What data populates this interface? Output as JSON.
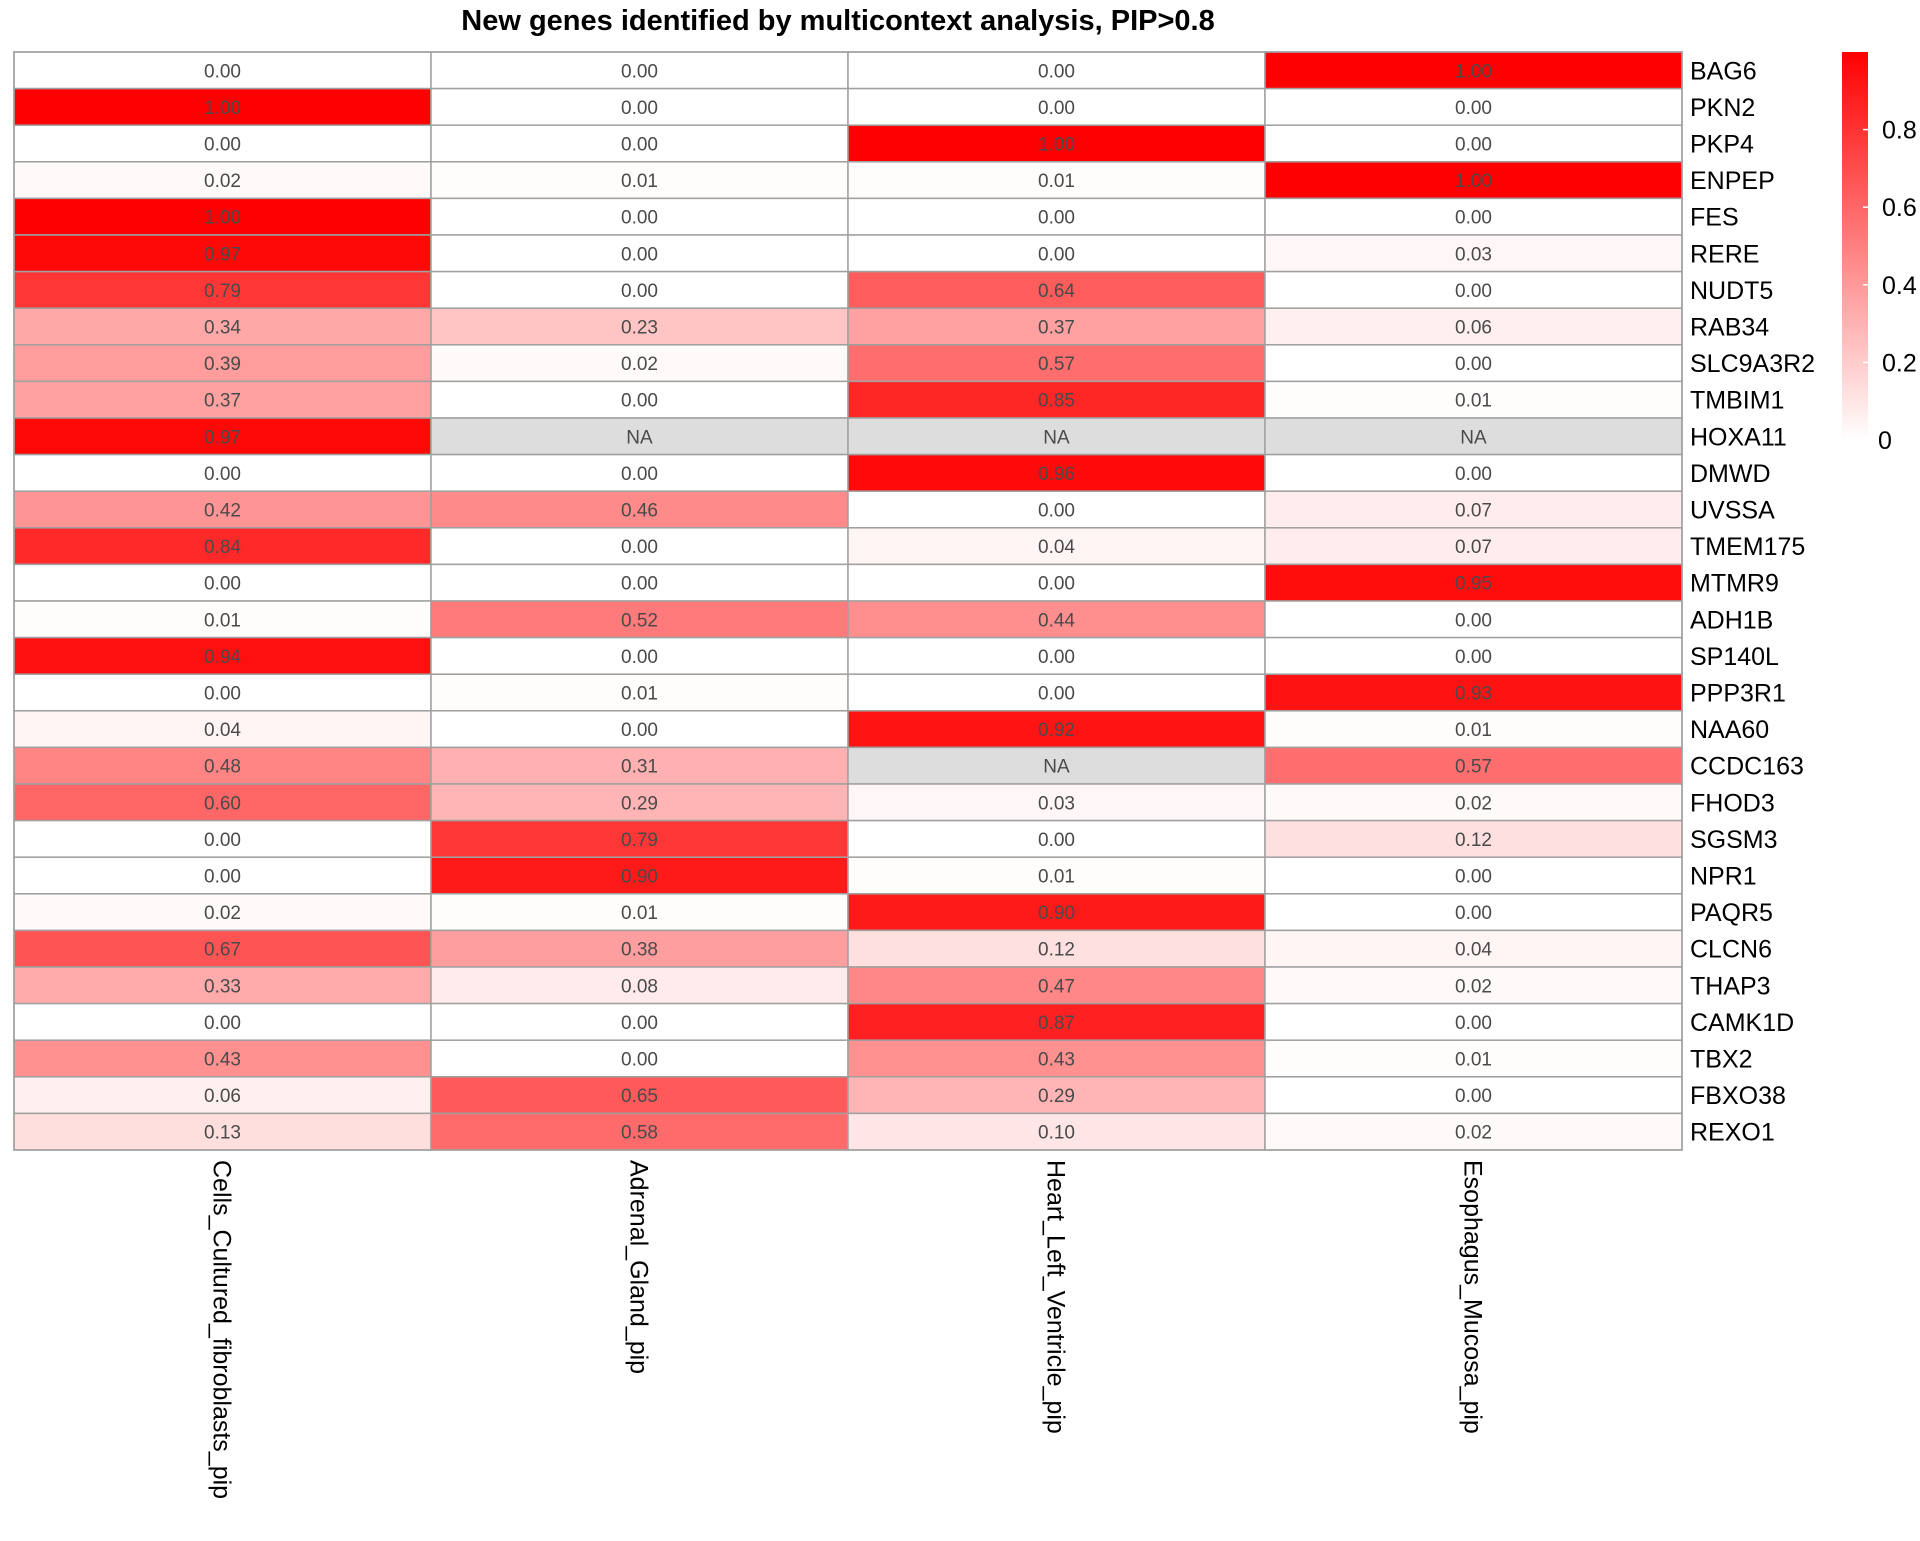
{
  "chart_data": {
    "type": "heatmap",
    "title": "New genes identified by multicontext analysis, PIP>0.8",
    "columns": [
      "Cells_Cultured_fibroblasts_pip",
      "Adrenal_Gland_pip",
      "Heart_Left_Ventricle_pip",
      "Esophagus_Mucosa_pip"
    ],
    "rows": [
      "BAG6",
      "PKN2",
      "PKP4",
      "ENPEP",
      "FES",
      "RERE",
      "NUDT5",
      "RAB34",
      "SLC9A3R2",
      "TMBIM1",
      "HOXA11",
      "DMWD",
      "UVSSA",
      "TMEM175",
      "MTMR9",
      "ADH1B",
      "SP140L",
      "PPP3R1",
      "NAA60",
      "CCDC163",
      "FHOD3",
      "SGSM3",
      "NPR1",
      "PAQR5",
      "CLCN6",
      "THAP3",
      "CAMK1D",
      "TBX2",
      "FBXO38",
      "REXO1"
    ],
    "values": [
      [
        0.0,
        0.0,
        0.0,
        1.0
      ],
      [
        1.0,
        0.0,
        0.0,
        0.0
      ],
      [
        0.0,
        0.0,
        1.0,
        0.0
      ],
      [
        0.02,
        0.01,
        0.01,
        1.0
      ],
      [
        1.0,
        0.0,
        0.0,
        0.0
      ],
      [
        0.97,
        0.0,
        0.0,
        0.03
      ],
      [
        0.79,
        0.0,
        0.64,
        0.0
      ],
      [
        0.34,
        0.23,
        0.37,
        0.06
      ],
      [
        0.39,
        0.02,
        0.57,
        0.0
      ],
      [
        0.37,
        0.0,
        0.85,
        0.01
      ],
      [
        0.97,
        null,
        null,
        null
      ],
      [
        0.0,
        0.0,
        0.96,
        0.0
      ],
      [
        0.42,
        0.46,
        0.0,
        0.07
      ],
      [
        0.84,
        0.0,
        0.04,
        0.07
      ],
      [
        0.0,
        0.0,
        0.0,
        0.95
      ],
      [
        0.01,
        0.52,
        0.44,
        0.0
      ],
      [
        0.94,
        0.0,
        0.0,
        0.0
      ],
      [
        0.0,
        0.01,
        0.0,
        0.93
      ],
      [
        0.04,
        0.0,
        0.92,
        0.01
      ],
      [
        0.48,
        0.31,
        null,
        0.57
      ],
      [
        0.6,
        0.29,
        0.03,
        0.02
      ],
      [
        0.0,
        0.79,
        0.0,
        0.12
      ],
      [
        0.0,
        0.9,
        0.01,
        0.0
      ],
      [
        0.02,
        0.01,
        0.9,
        0.0
      ],
      [
        0.67,
        0.38,
        0.12,
        0.04
      ],
      [
        0.33,
        0.08,
        0.47,
        0.02
      ],
      [
        0.0,
        0.0,
        0.87,
        0.0
      ],
      [
        0.43,
        0.0,
        0.43,
        0.01
      ],
      [
        0.06,
        0.65,
        0.29,
        0.0
      ],
      [
        0.13,
        0.58,
        0.1,
        0.02
      ]
    ],
    "na_label": "NA",
    "color_scale": {
      "low": "#ffffff",
      "high": "#ff0000",
      "na": "#dddddd",
      "domain": [
        0,
        1
      ]
    },
    "legend": {
      "position": "right",
      "ticks": [
        {
          "value": 0,
          "label": "0"
        },
        {
          "value": 0.2,
          "label": "0.2"
        },
        {
          "value": 0.4,
          "label": "0.4"
        },
        {
          "value": 0.6,
          "label": "0.6"
        },
        {
          "value": 0.8,
          "label": "0.8"
        }
      ]
    }
  }
}
